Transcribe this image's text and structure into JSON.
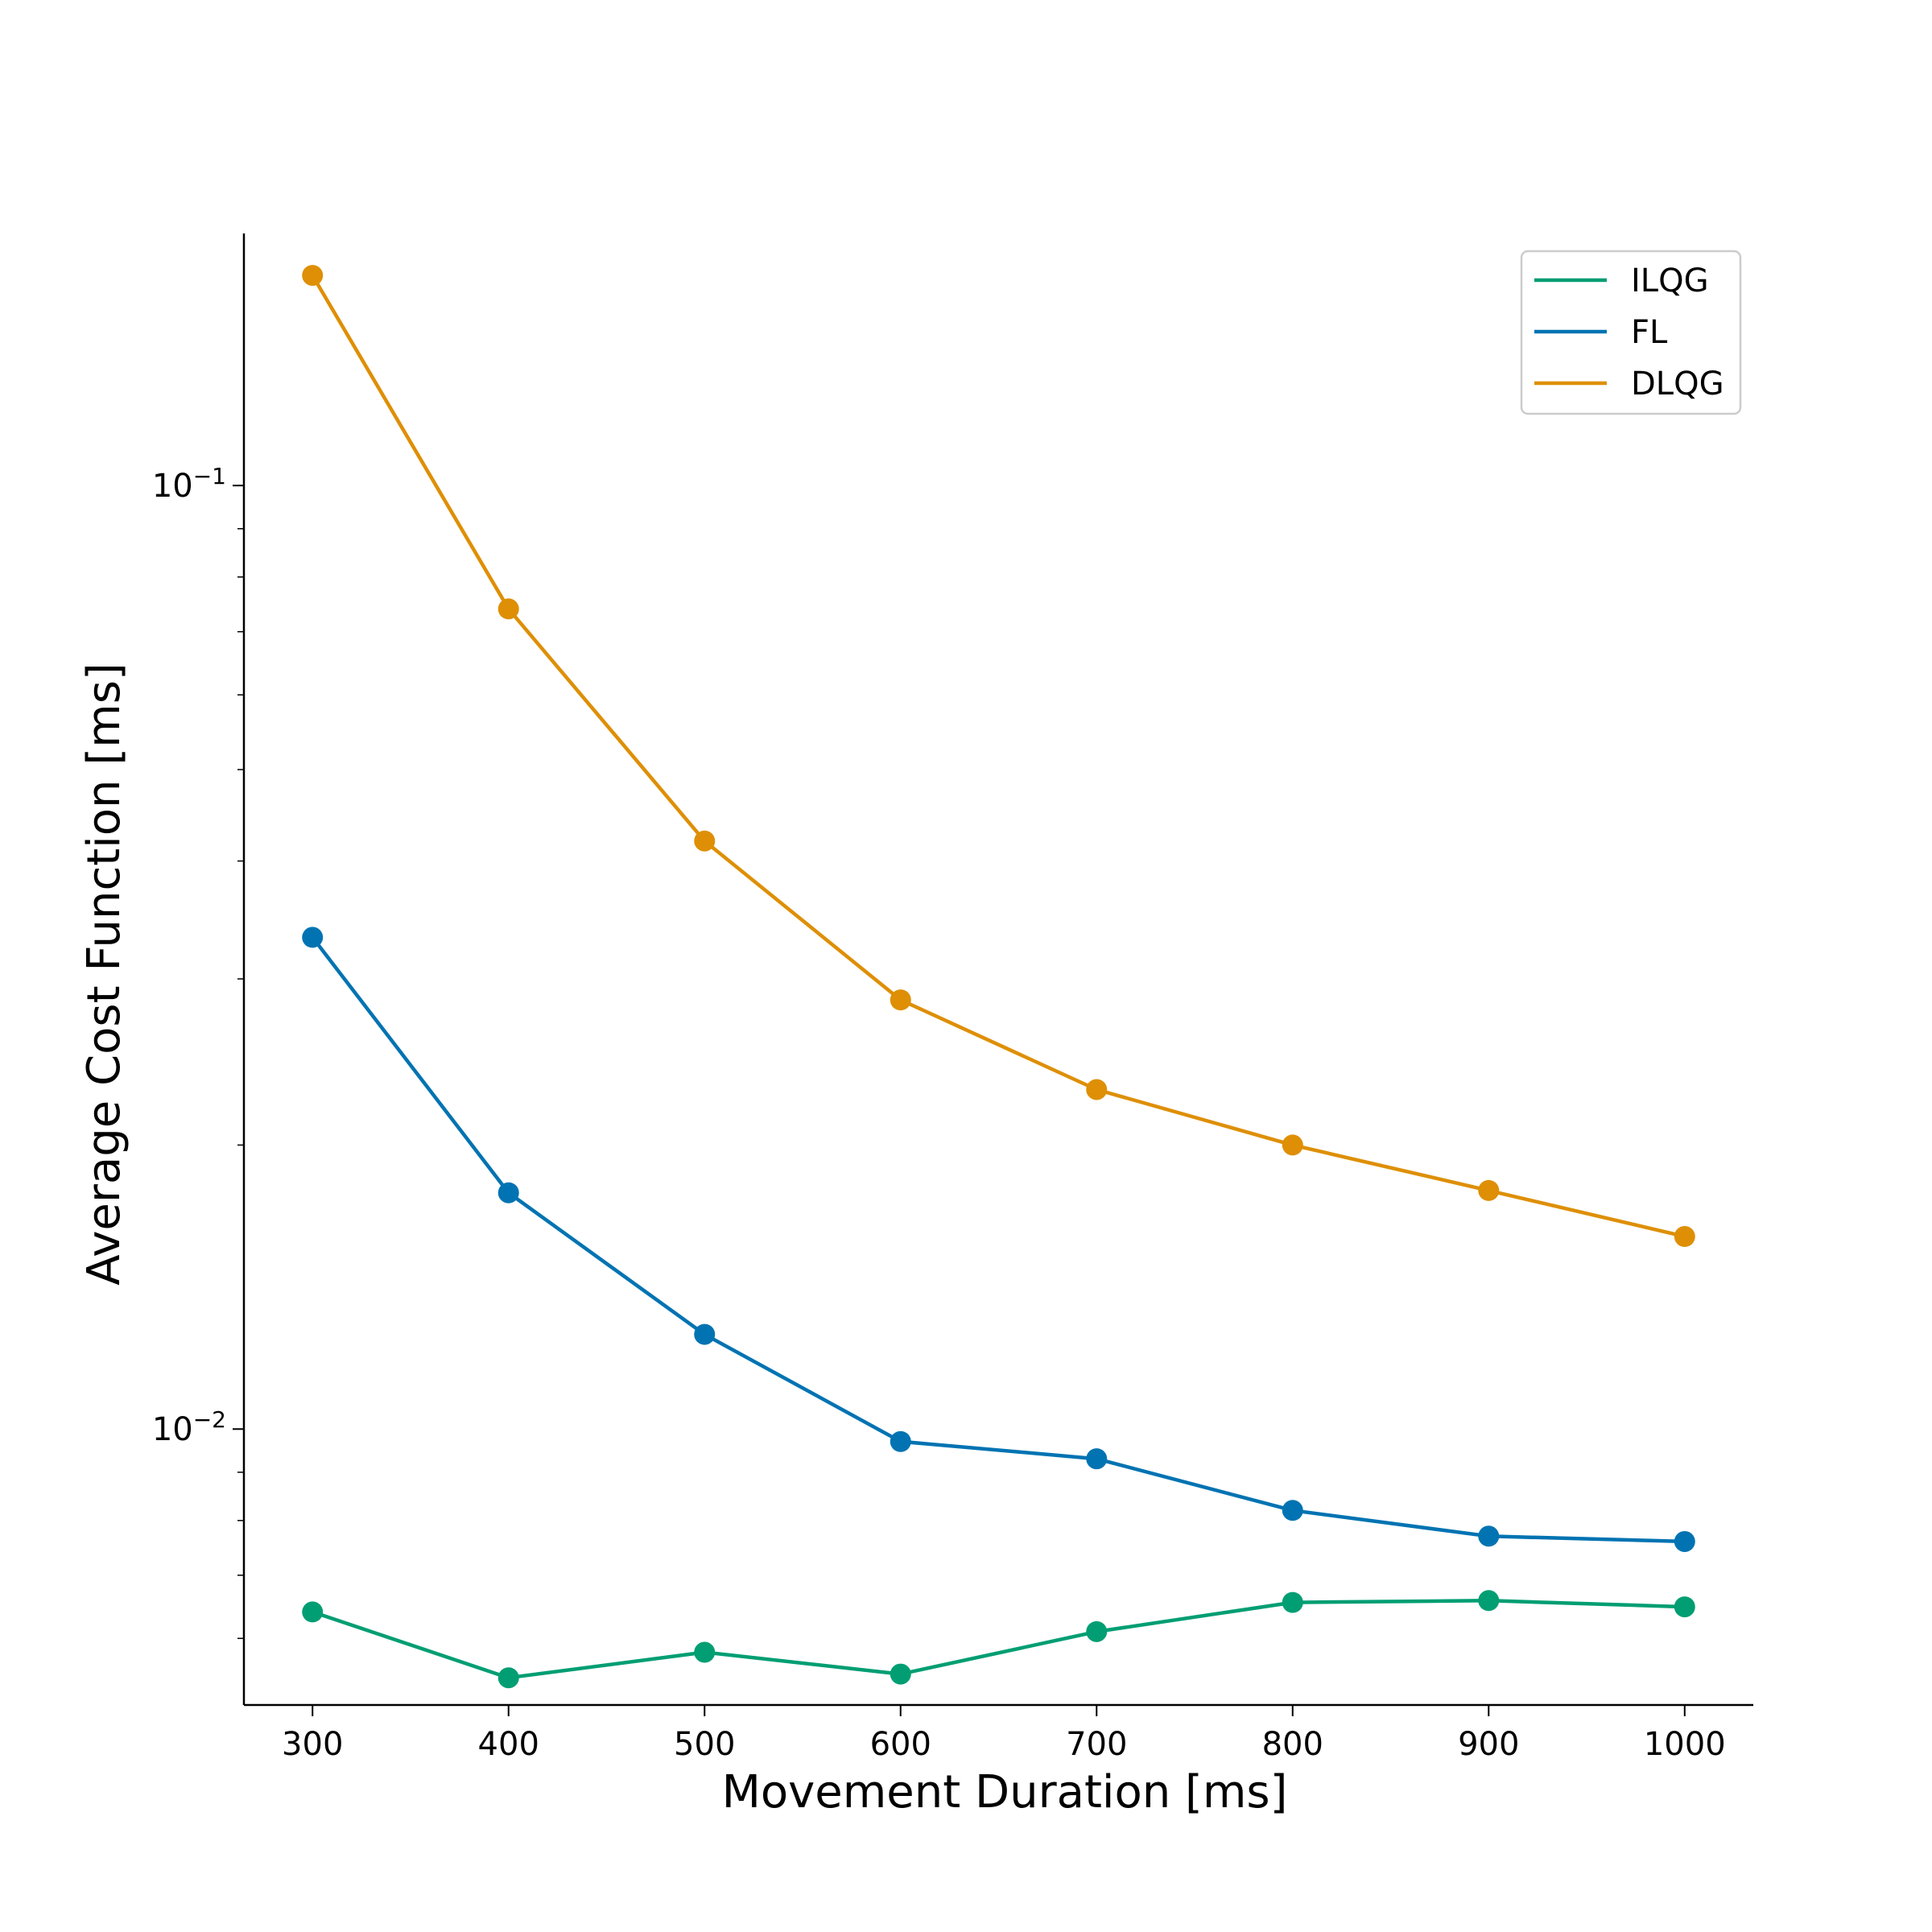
{
  "chart_data": {
    "type": "line",
    "xlabel": "Movement Duration [ms]",
    "ylabel": "Average Cost Function [ms]",
    "x": [
      300,
      400,
      500,
      600,
      700,
      800,
      900,
      1000
    ],
    "xticks": [
      "300",
      "400",
      "500",
      "600",
      "700",
      "800",
      "900",
      "1000"
    ],
    "yscale": "log",
    "ylim": [
      0.0051,
      0.185
    ],
    "yticks": [
      {
        "value": 0.1,
        "base": "10",
        "exp": "−1"
      },
      {
        "value": 0.01,
        "base": "10",
        "exp": "−2"
      }
    ],
    "grid": false,
    "legend_position": "top-right",
    "series": [
      {
        "name": "ILQG",
        "color": "#029e73",
        "values": [
          0.0064,
          0.00545,
          0.0058,
          0.0055,
          0.0061,
          0.00655,
          0.00658,
          0.00648
        ]
      },
      {
        "name": "FL",
        "color": "#0173b2",
        "values": [
          0.0332,
          0.0178,
          0.0126,
          0.0097,
          0.0093,
          0.0082,
          0.0077,
          0.0076
        ]
      },
      {
        "name": "DLQG",
        "color": "#de8f05",
        "values": [
          0.167,
          0.074,
          0.042,
          0.0285,
          0.0229,
          0.02,
          0.0179,
          0.016
        ]
      }
    ]
  }
}
